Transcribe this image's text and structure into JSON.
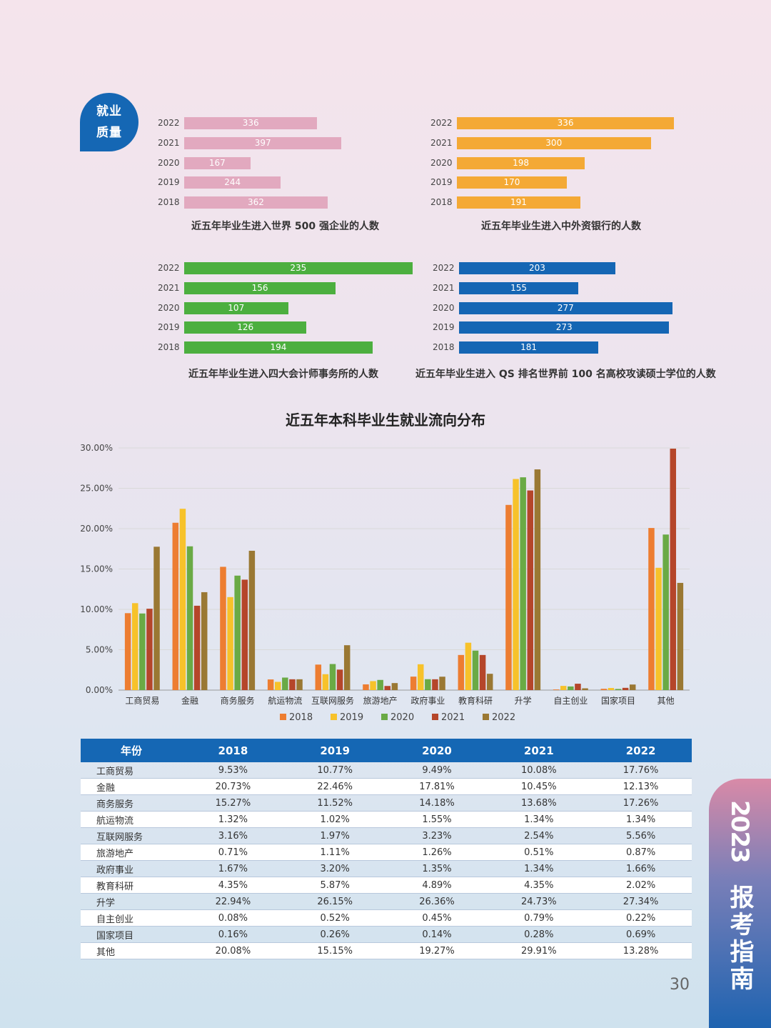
{
  "badge": {
    "line1": "就业",
    "line2": "质量"
  },
  "mini_charts": [
    {
      "caption": "近五年毕业生进入世界 500 强企业的人数",
      "color": "#e2a9bf",
      "years": [
        "2022",
        "2021",
        "2020",
        "2019",
        "2018"
      ],
      "values": [
        336,
        397,
        167,
        244,
        362
      ],
      "labels": [
        "336",
        "397",
        "167",
        "244",
        "362"
      ]
    },
    {
      "caption": "近五年毕业生进入中外资银行的人数",
      "color": "#f4a935",
      "years": [
        "2022",
        "2021",
        "2020",
        "2019",
        "2018"
      ],
      "values": [
        336,
        300,
        198,
        170,
        191
      ],
      "labels": [
        "336",
        "300",
        "198",
        "170",
        "191"
      ]
    },
    {
      "caption": "近五年毕业生进入四大会计师事务所的人数",
      "color": "#4caf3f",
      "years": [
        "2022",
        "2021",
        "2020",
        "2019",
        "2018"
      ],
      "values": [
        235,
        156,
        107,
        126,
        194
      ],
      "labels": [
        "235",
        "156",
        "107",
        "126",
        "194"
      ]
    },
    {
      "caption": "近五年毕业生进入 QS 排名世界前 100 名高校攻读硕士学位的人数",
      "color": "#1566b4",
      "years": [
        "2022",
        "2021",
        "2020",
        "2019",
        "2018"
      ],
      "values": [
        203,
        155,
        277,
        273,
        181
      ],
      "labels": [
        "203",
        "155",
        "277",
        "273",
        "181"
      ]
    }
  ],
  "chart_data": {
    "type": "bar",
    "title": "近五年本科毕业生就业流向分布",
    "categories": [
      "工商贸易",
      "金融",
      "商务服务",
      "航运物流",
      "互联网服务",
      "旅游地产",
      "政府事业",
      "教育科研",
      "升学",
      "自主创业",
      "国家项目",
      "其他"
    ],
    "series": [
      {
        "name": "2018",
        "color": "#ed7d31",
        "values": [
          9.53,
          20.73,
          15.27,
          1.32,
          3.16,
          0.71,
          1.67,
          4.35,
          22.94,
          0.08,
          0.16,
          20.08
        ]
      },
      {
        "name": "2019",
        "color": "#f7c22a",
        "values": [
          10.77,
          22.46,
          11.52,
          1.02,
          1.97,
          1.11,
          3.2,
          5.87,
          26.15,
          0.52,
          0.26,
          15.15
        ]
      },
      {
        "name": "2020",
        "color": "#6aaa45",
        "values": [
          9.49,
          17.81,
          14.18,
          1.55,
          3.23,
          1.26,
          1.35,
          4.89,
          26.36,
          0.45,
          0.14,
          19.27
        ]
      },
      {
        "name": "2021",
        "color": "#b5462a",
        "values": [
          10.08,
          10.45,
          13.68,
          1.34,
          2.54,
          0.51,
          1.34,
          4.35,
          24.73,
          0.79,
          0.28,
          29.91
        ]
      },
      {
        "name": "2022",
        "color": "#9a7833",
        "values": [
          17.76,
          12.13,
          17.26,
          1.34,
          5.56,
          0.87,
          1.66,
          2.02,
          27.34,
          0.22,
          0.69,
          13.28
        ]
      }
    ],
    "ylim": [
      0,
      30
    ],
    "yticks": [
      "0.00%",
      "5.00%",
      "10.00%",
      "15.00%",
      "20.00%",
      "25.00%",
      "30.00%"
    ],
    "legend": "bottom",
    "grid": true
  },
  "table": {
    "headers": [
      "年份",
      "2018",
      "2019",
      "2020",
      "2021",
      "2022"
    ],
    "rows": [
      [
        "工商贸易",
        "9.53%",
        "10.77%",
        "9.49%",
        "10.08%",
        "17.76%"
      ],
      [
        "金融",
        "20.73%",
        "22.46%",
        "17.81%",
        "10.45%",
        "12.13%"
      ],
      [
        "商务服务",
        "15.27%",
        "11.52%",
        "14.18%",
        "13.68%",
        "17.26%"
      ],
      [
        "航运物流",
        "1.32%",
        "1.02%",
        "1.55%",
        "1.34%",
        "1.34%"
      ],
      [
        "互联网服务",
        "3.16%",
        "1.97%",
        "3.23%",
        "2.54%",
        "5.56%"
      ],
      [
        "旅游地产",
        "0.71%",
        "1.11%",
        "1.26%",
        "0.51%",
        "0.87%"
      ],
      [
        "政府事业",
        "1.67%",
        "3.20%",
        "1.35%",
        "1.34%",
        "1.66%"
      ],
      [
        "教育科研",
        "4.35%",
        "5.87%",
        "4.89%",
        "4.35%",
        "2.02%"
      ],
      [
        "升学",
        "22.94%",
        "26.15%",
        "26.36%",
        "24.73%",
        "27.34%"
      ],
      [
        "自主创业",
        "0.08%",
        "0.52%",
        "0.45%",
        "0.79%",
        "0.22%"
      ],
      [
        "国家项目",
        "0.16%",
        "0.26%",
        "0.14%",
        "0.28%",
        "0.69%"
      ],
      [
        "其他",
        "20.08%",
        "15.15%",
        "19.27%",
        "29.91%",
        "13.28%"
      ]
    ]
  },
  "page_number": "30",
  "side_tab": {
    "year": "2023",
    "word": "报考指南"
  }
}
